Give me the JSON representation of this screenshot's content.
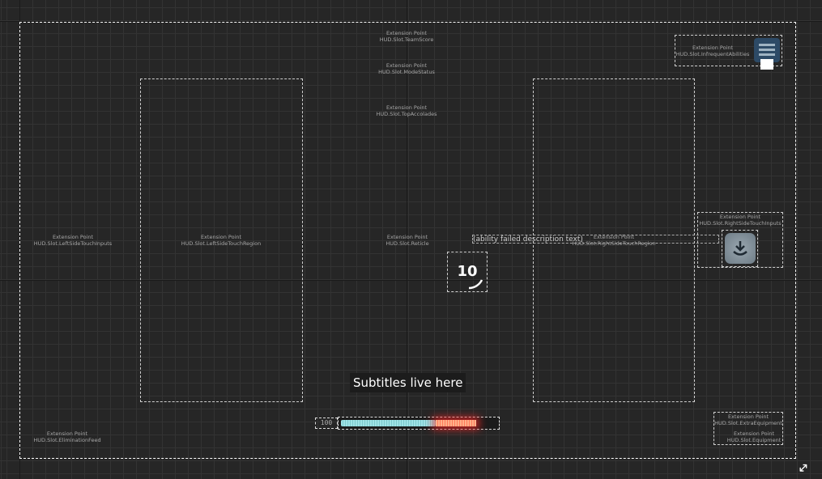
{
  "extension_points": [
    {
      "title": "Extension Point",
      "slot": "HUD.Slot.TeamScore"
    },
    {
      "title": "Extension Point",
      "slot": "HUD.Slot.ModeStatus"
    },
    {
      "title": "Extension Point",
      "slot": "HUD.Slot.TopAccolades"
    },
    {
      "title": "Extension Point",
      "slot": "HUD.Slot.InfrequentAbilities"
    },
    {
      "title": "Extension Point",
      "slot": "HUD.Slot.LeftSideTouchInputs"
    },
    {
      "title": "Extension Point",
      "slot": "HUD.Slot.LeftSideTouchRegion"
    },
    {
      "title": "Extension Point",
      "slot": "HUD.Slot.Reticle"
    },
    {
      "title": "Extension Point",
      "slot": "HUD.Slot.RightSideTouchRegion"
    },
    {
      "title": "Extension Point",
      "slot": "HUD.Slot.RightSideTouchInputs"
    },
    {
      "title": "Extension Point",
      "slot": "HUD.Slot.EliminationFeed"
    },
    {
      "title": "Extension Point",
      "slot": "HUD.Slot.ExtraEquipment"
    },
    {
      "title": "Extension Point",
      "slot": "HUD.Slot.Equipment"
    }
  ],
  "ability_failed_text": "(ability failed description text)",
  "timer_value": "10",
  "subtitle_text": "Subtitles live here",
  "health": {
    "value_text": "100",
    "fill_fraction": 0.61,
    "damage_fraction": 0.26
  },
  "icons": {
    "menu": "menu-icon",
    "download": "download-icon",
    "resize": "resize-icon"
  },
  "colors": {
    "health": "#9fe3e6",
    "damage": "#ff6a4a",
    "background": "#262626"
  }
}
